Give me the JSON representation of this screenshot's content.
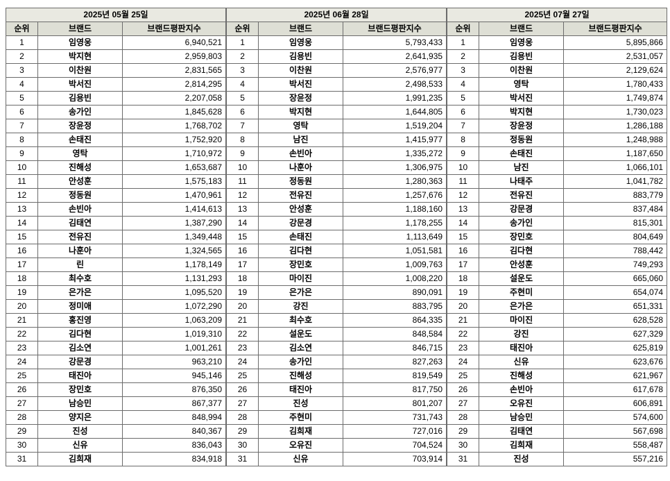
{
  "chart_data": [
    {
      "type": "table",
      "title": "2025년 05월 25일",
      "columns": [
        "순위",
        "브랜드",
        "브랜드평판지수"
      ],
      "rows": [
        [
          "1",
          "임영웅",
          "6,940,521"
        ],
        [
          "2",
          "박지현",
          "2,959,803"
        ],
        [
          "3",
          "이찬원",
          "2,831,565"
        ],
        [
          "4",
          "박서진",
          "2,814,295"
        ],
        [
          "5",
          "김용빈",
          "2,207,058"
        ],
        [
          "6",
          "송가인",
          "1,845,628"
        ],
        [
          "7",
          "장윤정",
          "1,768,702"
        ],
        [
          "8",
          "손태진",
          "1,752,920"
        ],
        [
          "9",
          "영탁",
          "1,710,972"
        ],
        [
          "10",
          "진해성",
          "1,653,687"
        ],
        [
          "11",
          "안성훈",
          "1,575,183"
        ],
        [
          "12",
          "정동원",
          "1,470,961"
        ],
        [
          "13",
          "손빈아",
          "1,414,613"
        ],
        [
          "14",
          "김태연",
          "1,387,290"
        ],
        [
          "15",
          "전유진",
          "1,349,448"
        ],
        [
          "16",
          "나훈아",
          "1,324,565"
        ],
        [
          "17",
          "린",
          "1,178,149"
        ],
        [
          "18",
          "최수호",
          "1,131,293"
        ],
        [
          "19",
          "은가은",
          "1,095,520"
        ],
        [
          "20",
          "정미애",
          "1,072,290"
        ],
        [
          "21",
          "홍진영",
          "1,063,209"
        ],
        [
          "22",
          "김다현",
          "1,019,310"
        ],
        [
          "23",
          "김소연",
          "1,001,261"
        ],
        [
          "24",
          "강문경",
          "963,210"
        ],
        [
          "25",
          "태진아",
          "945,146"
        ],
        [
          "26",
          "장민호",
          "876,350"
        ],
        [
          "27",
          "남승민",
          "867,377"
        ],
        [
          "28",
          "양지은",
          "848,994"
        ],
        [
          "29",
          "진성",
          "840,367"
        ],
        [
          "30",
          "신유",
          "836,043"
        ],
        [
          "31",
          "김희재",
          "834,918"
        ]
      ]
    },
    {
      "type": "table",
      "title": "2025년 06월 28일",
      "columns": [
        "순위",
        "브랜드",
        "브랜드평판지수"
      ],
      "rows": [
        [
          "1",
          "임영웅",
          "5,793,433"
        ],
        [
          "2",
          "김용빈",
          "2,641,935"
        ],
        [
          "3",
          "이찬원",
          "2,576,977"
        ],
        [
          "4",
          "박서진",
          "2,498,533"
        ],
        [
          "5",
          "장윤정",
          "1,991,235"
        ],
        [
          "6",
          "박지현",
          "1,644,805"
        ],
        [
          "7",
          "영탁",
          "1,519,204"
        ],
        [
          "8",
          "남진",
          "1,415,977"
        ],
        [
          "9",
          "손빈아",
          "1,335,272"
        ],
        [
          "10",
          "나훈아",
          "1,306,975"
        ],
        [
          "11",
          "정동원",
          "1,280,363"
        ],
        [
          "12",
          "전유진",
          "1,257,676"
        ],
        [
          "13",
          "안성훈",
          "1,188,160"
        ],
        [
          "14",
          "강문경",
          "1,178,255"
        ],
        [
          "15",
          "손태진",
          "1,113,649"
        ],
        [
          "16",
          "김다현",
          "1,051,581"
        ],
        [
          "17",
          "장민호",
          "1,009,763"
        ],
        [
          "18",
          "마이진",
          "1,008,220"
        ],
        [
          "19",
          "은가은",
          "890,091"
        ],
        [
          "20",
          "강진",
          "883,795"
        ],
        [
          "21",
          "최수호",
          "864,335"
        ],
        [
          "22",
          "설운도",
          "848,584"
        ],
        [
          "23",
          "김소연",
          "846,715"
        ],
        [
          "24",
          "송가인",
          "827,263"
        ],
        [
          "25",
          "진해성",
          "819,549"
        ],
        [
          "26",
          "태진아",
          "817,750"
        ],
        [
          "27",
          "진성",
          "801,207"
        ],
        [
          "28",
          "주현미",
          "731,743"
        ],
        [
          "29",
          "김희재",
          "727,016"
        ],
        [
          "30",
          "오유진",
          "704,524"
        ],
        [
          "31",
          "신유",
          "703,914"
        ]
      ]
    },
    {
      "type": "table",
      "title": "2025년 07월 27일",
      "columns": [
        "순위",
        "브랜드",
        "브랜드평판지수"
      ],
      "rows": [
        [
          "1",
          "임영웅",
          "5,895,866"
        ],
        [
          "2",
          "김용빈",
          "2,531,057"
        ],
        [
          "3",
          "이찬원",
          "2,129,624"
        ],
        [
          "4",
          "영탁",
          "1,780,433"
        ],
        [
          "5",
          "박서진",
          "1,749,874"
        ],
        [
          "6",
          "박지현",
          "1,730,023"
        ],
        [
          "7",
          "장윤정",
          "1,286,188"
        ],
        [
          "8",
          "정동원",
          "1,248,988"
        ],
        [
          "9",
          "손태진",
          "1,187,650"
        ],
        [
          "10",
          "남진",
          "1,066,101"
        ],
        [
          "11",
          "나태주",
          "1,041,782"
        ],
        [
          "12",
          "전유진",
          "883,779"
        ],
        [
          "13",
          "강문경",
          "837,484"
        ],
        [
          "14",
          "송가인",
          "815,301"
        ],
        [
          "15",
          "장민호",
          "804,649"
        ],
        [
          "16",
          "김다현",
          "788,442"
        ],
        [
          "17",
          "안성훈",
          "749,293"
        ],
        [
          "18",
          "설운도",
          "665,060"
        ],
        [
          "19",
          "주현미",
          "654,074"
        ],
        [
          "20",
          "은가은",
          "651,331"
        ],
        [
          "21",
          "마이진",
          "628,528"
        ],
        [
          "22",
          "강진",
          "627,329"
        ],
        [
          "23",
          "태진아",
          "625,819"
        ],
        [
          "24",
          "신유",
          "623,676"
        ],
        [
          "25",
          "진해성",
          "621,967"
        ],
        [
          "26",
          "손빈아",
          "617,678"
        ],
        [
          "27",
          "오유진",
          "606,891"
        ],
        [
          "28",
          "남승민",
          "574,600"
        ],
        [
          "29",
          "김태연",
          "567,698"
        ],
        [
          "30",
          "김희재",
          "558,487"
        ],
        [
          "31",
          "진성",
          "557,216"
        ]
      ]
    }
  ]
}
